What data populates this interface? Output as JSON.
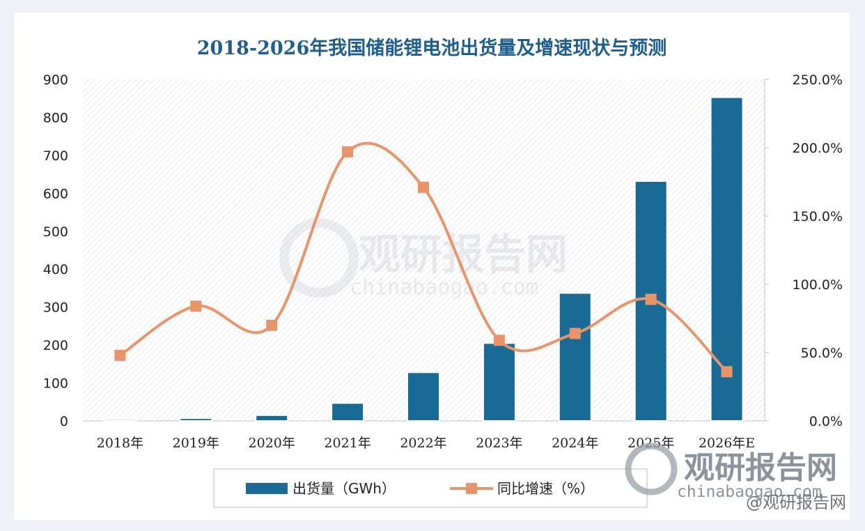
{
  "chart_data": {
    "type": "bar",
    "title": "2018-2026年我国储能锂电池出货量及增速现状与预测",
    "categories": [
      "2018年",
      "2019年",
      "2020年",
      "2021年",
      "2022年",
      "2023年",
      "2024年",
      "2025年",
      "2026年E"
    ],
    "series": [
      {
        "name": "出货量（GWh）",
        "type": "bar",
        "axis": "left",
        "color": "#1a6a96",
        "values": [
          4,
          7,
          15,
          47,
          128,
          205,
          337,
          632,
          853
        ]
      },
      {
        "name": "同比增速（%）",
        "type": "line",
        "axis": "right",
        "color": "#e8956a",
        "values": [
          48,
          84,
          70,
          197,
          171,
          59,
          64,
          89,
          36
        ]
      }
    ],
    "y_left": {
      "min": 0,
      "max": 900,
      "ticks": [
        "0",
        "100",
        "200",
        "300",
        "400",
        "500",
        "600",
        "700",
        "800",
        "900"
      ]
    },
    "y_right": {
      "min": 0,
      "max": 250,
      "ticks": [
        "0.0%",
        "50.0%",
        "100.0%",
        "150.0%",
        "200.0%",
        "250.0%"
      ]
    },
    "legend_position": "bottom",
    "grid": false
  },
  "watermark": {
    "center_name": "观研报告网",
    "center_url": "chinabaogao.com",
    "corner_name": "观研报告网",
    "corner_url": "chinabaogao.com",
    "credit": "@观研报告网"
  }
}
